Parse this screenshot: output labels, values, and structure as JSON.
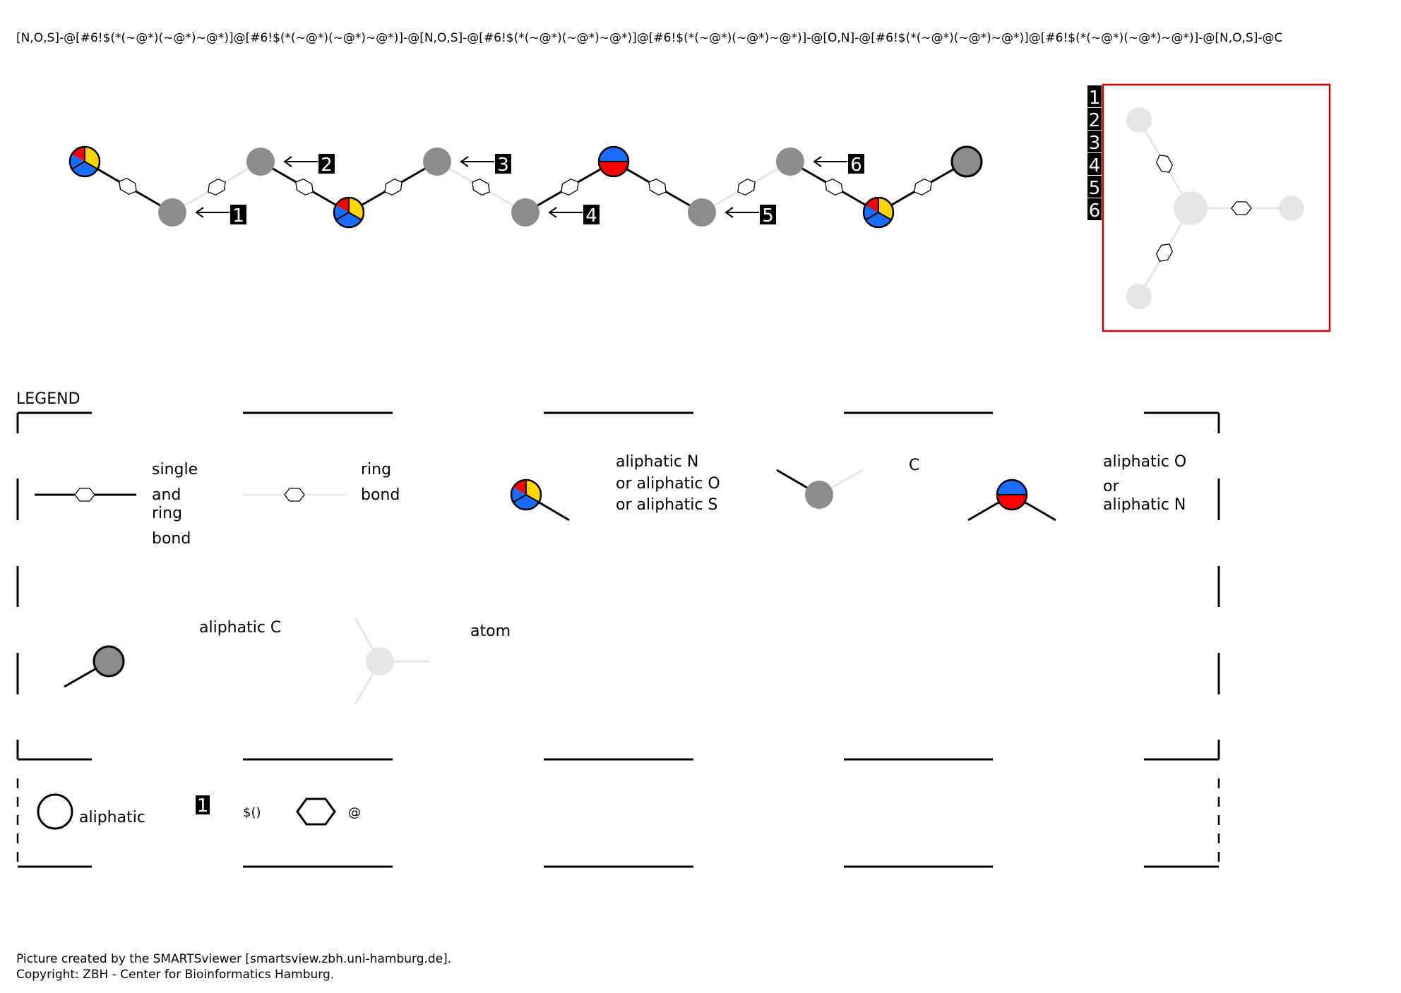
{
  "smarts": "[N,O,S]-@[#6!$(*(~@*)(~@*)~@*)]@[#6!$(*(~@*)(~@*)~@*)]-@[N,O,S]-@[#6!$(*(~@*)(~@*)~@*)]@[#6!$(*(~@*)(~@*)~@*)]-@[O,N]-@[#6!$(*(~@*)(~@*)~@*)]@[#6!$(*(~@*)(~@*)~@*)]-@[N,O,S]-@C",
  "labels": {
    "l1": "1",
    "l2": "2",
    "l3": "3",
    "l4": "4",
    "l5": "5",
    "l6": "6"
  },
  "inset_labels": [
    "1",
    "2",
    "3",
    "4",
    "5",
    "6"
  ],
  "colors": {
    "nitrogen": "#1a6cff",
    "oxygen": "#ff0000",
    "sulfur": "#ffd700",
    "carbon": "#8c8c8c",
    "inset_frame": "#cc0000",
    "light_atom": "#e6e6e6"
  },
  "legend": {
    "title": "LEGEND",
    "single_ring_bond": [
      "single",
      "and",
      "ring",
      "bond"
    ],
    "ring_bond": [
      "ring",
      "bond"
    ],
    "nos_atom": [
      "aliphatic N",
      "or aliphatic O",
      "or aliphatic S"
    ],
    "c_atom": "C",
    "on_atom": [
      "aliphatic O",
      "or",
      "aliphatic N"
    ],
    "aliphatic_c": "aliphatic C",
    "atom": "atom",
    "aliphatic": "aliphatic",
    "recursive": "$()",
    "ring_symbol": "@",
    "recursive_number": "1"
  },
  "footer": {
    "line1": "Picture created by the SMARTSviewer [smartsview.zbh.uni-hamburg.de].",
    "line2": "Copyright: ZBH - Center for Bioinformatics Hamburg."
  }
}
